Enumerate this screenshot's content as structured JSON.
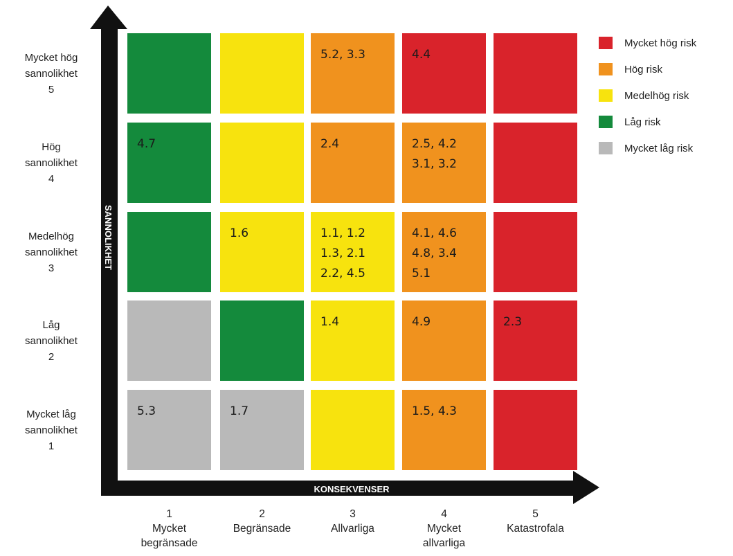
{
  "chart_data": {
    "type": "heatmap",
    "title": "",
    "xlabel": "KONSEKVENSER",
    "ylabel": "SANNOLIKHET",
    "colors": {
      "very_high": "#d9232b",
      "high": "#f0921e",
      "medium": "#f7e30e",
      "low": "#148a3c",
      "very_low": "#b9b9b9"
    },
    "legend": [
      {
        "key": "very_high",
        "label": "Mycket hög risk"
      },
      {
        "key": "high",
        "label": "Hög risk"
      },
      {
        "key": "medium",
        "label": "Medelhög risk"
      },
      {
        "key": "low",
        "label": "Låg risk"
      },
      {
        "key": "very_low",
        "label": "Mycket låg risk"
      }
    ],
    "consequences": [
      {
        "num": "1",
        "lines": [
          "Mycket",
          "begränsade"
        ]
      },
      {
        "num": "2",
        "lines": [
          "Begränsade"
        ]
      },
      {
        "num": "3",
        "lines": [
          "Allvarliga"
        ]
      },
      {
        "num": "4",
        "lines": [
          "Mycket",
          "allvarliga"
        ]
      },
      {
        "num": "5",
        "lines": [
          "Katastrofala"
        ]
      }
    ],
    "likelihoods": [
      {
        "num": "5",
        "lines": [
          "Mycket hög",
          "sannolikhet"
        ]
      },
      {
        "num": "4",
        "lines": [
          "Hög",
          "sannolikhet"
        ]
      },
      {
        "num": "3",
        "lines": [
          "Medelhög",
          "sannolikhet"
        ]
      },
      {
        "num": "2",
        "lines": [
          "Låg",
          "sannolikhet"
        ]
      },
      {
        "num": "1",
        "lines": [
          "Mycket låg",
          "sannolikhet"
        ]
      }
    ],
    "grid": [
      [
        {
          "risk": "low",
          "items": []
        },
        {
          "risk": "medium",
          "items": []
        },
        {
          "risk": "high",
          "items": [
            "5.2, 3.3"
          ]
        },
        {
          "risk": "very_high",
          "items": [
            "4.4"
          ]
        },
        {
          "risk": "very_high",
          "items": []
        }
      ],
      [
        {
          "risk": "low",
          "items": [
            "4.7"
          ]
        },
        {
          "risk": "medium",
          "items": []
        },
        {
          "risk": "high",
          "items": [
            "2.4"
          ]
        },
        {
          "risk": "high",
          "items": [
            "2.5, 4.2",
            "3.1, 3.2"
          ]
        },
        {
          "risk": "very_high",
          "items": []
        }
      ],
      [
        {
          "risk": "low",
          "items": []
        },
        {
          "risk": "medium",
          "items": [
            "1.6"
          ]
        },
        {
          "risk": "medium",
          "items": [
            "1.1, 1.2",
            "1.3, 2.1",
            "2.2, 4.5"
          ]
        },
        {
          "risk": "high",
          "items": [
            "4.1, 4.6",
            "4.8, 3.4",
            "5.1"
          ]
        },
        {
          "risk": "very_high",
          "items": []
        }
      ],
      [
        {
          "risk": "very_low",
          "items": []
        },
        {
          "risk": "low",
          "items": []
        },
        {
          "risk": "medium",
          "items": [
            "1.4"
          ]
        },
        {
          "risk": "high",
          "items": [
            "4.9"
          ]
        },
        {
          "risk": "very_high",
          "items": [
            "2.3"
          ]
        }
      ],
      [
        {
          "risk": "very_low",
          "items": [
            "5.3"
          ]
        },
        {
          "risk": "very_low",
          "items": [
            "1.7"
          ]
        },
        {
          "risk": "medium",
          "items": []
        },
        {
          "risk": "high",
          "items": [
            "1.5, 4.3"
          ]
        },
        {
          "risk": "very_high",
          "items": []
        }
      ]
    ]
  }
}
